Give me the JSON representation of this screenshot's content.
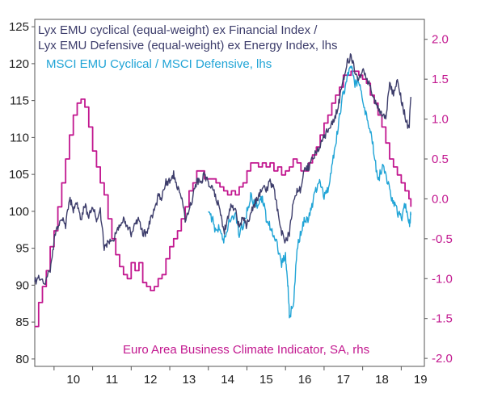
{
  "chart_data": {
    "type": "line",
    "legend_placement": "inside",
    "colors": {
      "lyx": "#3d3d6b",
      "msci": "#20a4d6",
      "bci": "#c2178f",
      "left_axis": "#222222",
      "right_axis": "#c2178f"
    },
    "x_axis": {
      "ticks": [
        "10",
        "11",
        "12",
        "13",
        "14",
        "15",
        "16",
        "17",
        "18",
        "19"
      ],
      "xlim": [
        2009.5,
        2019.6
      ]
    },
    "y_left": {
      "ticks": [
        "80",
        "85",
        "90",
        "95",
        "100",
        "105",
        "110",
        "115",
        "120",
        "125"
      ],
      "ylim": [
        79,
        126
      ]
    },
    "y_right": {
      "ticks": [
        "-2.0",
        "-1.5",
        "-1.0",
        "-0.5",
        "0.0",
        "0.5",
        "1.0",
        "1.5",
        "2.0"
      ],
      "ylim": [
        -2.1,
        2.25
      ]
    },
    "series": [
      {
        "key": "lyx",
        "name": "Lyx EMU cyclical (equal-weight) ex Financial Index /",
        "name_line2": "Lyx EMU Defensive (equal-weight) ex Energy Index, lhs",
        "axis": "left",
        "x": [
          2009.5,
          2009.6,
          2009.75,
          2009.9,
          2010.0,
          2010.1,
          2010.2,
          2010.3,
          2010.4,
          2010.5,
          2010.6,
          2010.7,
          2010.8,
          2010.9,
          2011.0,
          2011.1,
          2011.2,
          2011.3,
          2011.4,
          2011.5,
          2011.6,
          2011.7,
          2011.8,
          2011.9,
          2012.0,
          2012.1,
          2012.2,
          2012.3,
          2012.4,
          2012.5,
          2012.6,
          2012.7,
          2012.8,
          2012.9,
          2013.0,
          2013.1,
          2013.2,
          2013.3,
          2013.4,
          2013.5,
          2013.6,
          2013.7,
          2013.8,
          2013.9,
          2014.0,
          2014.1,
          2014.2,
          2014.3,
          2014.4,
          2014.5,
          2014.6,
          2014.7,
          2014.8,
          2014.9,
          2015.0,
          2015.1,
          2015.2,
          2015.3,
          2015.4,
          2015.5,
          2015.6,
          2015.7,
          2015.8,
          2015.9,
          2016.0,
          2016.1,
          2016.2,
          2016.3,
          2016.4,
          2016.5,
          2016.6,
          2016.7,
          2016.8,
          2016.9,
          2017.0,
          2017.1,
          2017.2,
          2017.3,
          2017.4,
          2017.5,
          2017.6,
          2017.7,
          2017.8,
          2017.9,
          2018.0,
          2018.1,
          2018.2,
          2018.3,
          2018.4,
          2018.5,
          2018.6,
          2018.7,
          2018.8,
          2018.9,
          2019.0,
          2019.1,
          2019.2,
          2019.25
        ],
        "y": [
          90.5,
          91,
          90,
          92,
          96,
          98,
          99,
          98,
          102,
          100,
          101,
          99,
          101,
          99,
          101,
          99,
          100,
          95,
          96,
          96,
          97,
          98,
          99,
          98,
          97,
          98,
          99,
          97,
          97,
          99,
          100,
          102,
          102,
          104,
          104,
          105,
          103,
          102,
          99,
          100,
          102,
          104,
          104,
          105,
          104,
          103,
          102,
          100,
          97,
          99,
          101,
          100,
          98,
          99,
          98,
          100,
          101,
          102,
          103,
          103,
          104,
          103,
          100,
          97,
          96,
          97,
          101,
          103,
          103,
          106,
          106,
          107,
          108,
          109,
          110,
          111,
          112,
          113,
          115,
          118,
          120,
          121,
          119,
          118,
          119,
          118,
          117,
          115,
          114,
          113,
          113,
          117,
          116,
          118,
          115,
          113,
          111,
          115.5
        ]
      },
      {
        "key": "msci",
        "name": "MSCI EMU Cyclical / MSCI Defensive, lhs",
        "axis": "left",
        "x": [
          2014.0,
          2014.1,
          2014.2,
          2014.3,
          2014.4,
          2014.5,
          2014.6,
          2014.7,
          2014.8,
          2014.9,
          2015.0,
          2015.1,
          2015.2,
          2015.3,
          2015.4,
          2015.5,
          2015.6,
          2015.7,
          2015.8,
          2015.9,
          2016.0,
          2016.05,
          2016.1,
          2016.2,
          2016.3,
          2016.4,
          2016.5,
          2016.6,
          2016.7,
          2016.8,
          2016.9,
          2017.0,
          2017.1,
          2017.2,
          2017.3,
          2017.4,
          2017.5,
          2017.6,
          2017.7,
          2017.8,
          2017.9,
          2018.0,
          2018.1,
          2018.2,
          2018.3,
          2018.4,
          2018.5,
          2018.6,
          2018.7,
          2018.8,
          2018.9,
          2019.0,
          2019.1,
          2019.2,
          2019.25
        ],
        "y": [
          100,
          99,
          97,
          98,
          96,
          98,
          99,
          100,
          97,
          98,
          100,
          102,
          101,
          101,
          102,
          99,
          98,
          97,
          95,
          93,
          94,
          91,
          86,
          87,
          95,
          97,
          99,
          99,
          101,
          103,
          104,
          102,
          103,
          106,
          109,
          113,
          116,
          118,
          120,
          117,
          118,
          115,
          113,
          111,
          108,
          104,
          106,
          105,
          103,
          101,
          100,
          99,
          101,
          98,
          99.5
        ]
      },
      {
        "key": "bci",
        "name": "Euro Area Business Climate Indicator, SA, rhs",
        "axis": "right",
        "x": [
          2009.5,
          2009.6,
          2009.7,
          2009.8,
          2009.9,
          2010.0,
          2010.1,
          2010.2,
          2010.3,
          2010.4,
          2010.5,
          2010.6,
          2010.7,
          2010.8,
          2010.9,
          2011.0,
          2011.1,
          2011.2,
          2011.3,
          2011.4,
          2011.5,
          2011.6,
          2011.7,
          2011.8,
          2011.9,
          2012.0,
          2012.1,
          2012.2,
          2012.3,
          2012.4,
          2012.5,
          2012.6,
          2012.7,
          2012.8,
          2012.9,
          2013.0,
          2013.1,
          2013.2,
          2013.3,
          2013.4,
          2013.5,
          2013.6,
          2013.7,
          2013.8,
          2013.9,
          2014.0,
          2014.1,
          2014.2,
          2014.3,
          2014.4,
          2014.5,
          2014.6,
          2014.7,
          2014.8,
          2014.9,
          2015.0,
          2015.1,
          2015.2,
          2015.3,
          2015.4,
          2015.5,
          2015.6,
          2015.7,
          2015.8,
          2015.9,
          2016.0,
          2016.1,
          2016.2,
          2016.3,
          2016.4,
          2016.5,
          2016.6,
          2016.7,
          2016.8,
          2016.9,
          2017.0,
          2017.1,
          2017.2,
          2017.3,
          2017.4,
          2017.5,
          2017.6,
          2017.7,
          2017.8,
          2017.9,
          2018.0,
          2018.1,
          2018.2,
          2018.3,
          2018.4,
          2018.5,
          2018.6,
          2018.7,
          2018.8,
          2018.9,
          2019.0,
          2019.1,
          2019.2,
          2019.25
        ],
        "y": [
          -1.6,
          -1.3,
          -1.1,
          -0.9,
          -0.6,
          -0.4,
          -0.1,
          0.2,
          0.5,
          0.8,
          1.05,
          1.2,
          1.25,
          1.15,
          0.9,
          0.6,
          0.4,
          0.2,
          0.05,
          -0.25,
          -0.5,
          -0.7,
          -0.85,
          -0.95,
          -1.0,
          -0.8,
          -0.9,
          -0.8,
          -1.05,
          -1.1,
          -1.15,
          -1.1,
          -1.0,
          -0.95,
          -0.75,
          -0.6,
          -0.5,
          -0.4,
          -0.25,
          -0.1,
          0.1,
          0.2,
          0.35,
          0.35,
          0.25,
          0.25,
          0.25,
          0.2,
          0.15,
          0.1,
          0.05,
          0.1,
          0.05,
          0.15,
          0.2,
          0.35,
          0.45,
          0.45,
          0.4,
          0.45,
          0.4,
          0.45,
          0.35,
          0.4,
          0.3,
          0.35,
          0.4,
          0.5,
          0.45,
          0.35,
          0.35,
          0.45,
          0.55,
          0.65,
          0.8,
          0.95,
          1.05,
          1.2,
          1.3,
          1.4,
          1.55,
          1.55,
          1.6,
          1.6,
          1.55,
          1.5,
          1.45,
          1.3,
          1.2,
          1.05,
          0.9,
          0.7,
          0.5,
          0.4,
          0.3,
          0.2,
          0.1,
          0.0,
          -0.1
        ]
      }
    ]
  }
}
